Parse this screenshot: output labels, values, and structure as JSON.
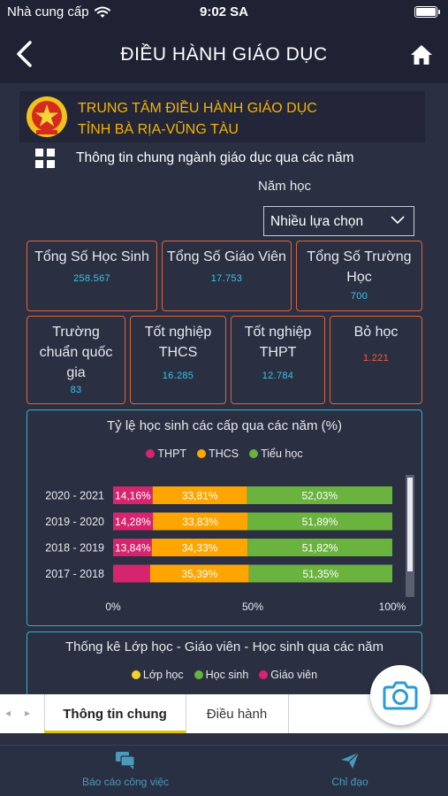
{
  "status_bar": {
    "carrier": "Nhà cung cấp",
    "time": "9:02 SA"
  },
  "nav": {
    "title": "ĐIỀU HÀNH GIÁO DỤC",
    "back_icon": "chevron-left-icon",
    "home_icon": "home-icon"
  },
  "org": {
    "line1": "TRUNG TÂM ĐIỀU HÀNH GIÁO DỤC",
    "line2": "TỈNH BÀ RỊA-VŨNG TÀU"
  },
  "section": {
    "title": "Thông tin chung ngành giáo dục qua các năm"
  },
  "filter": {
    "label": "Năm học",
    "selected": "Nhiều lựa chọn"
  },
  "cards": [
    {
      "title": "Tổng Số Học Sinh",
      "value": "258.567"
    },
    {
      "title": "Tổng Số Giáo Viên",
      "value": "17.753"
    },
    {
      "title": "Tổng Số Trường Học",
      "value": "700"
    },
    {
      "title": "Trường chuẩn quốc gia",
      "value": "83"
    },
    {
      "title": "Tốt nghiệp THCS",
      "value": "16.285"
    },
    {
      "title": "Tốt nghiệp THPT",
      "value": "12.784"
    },
    {
      "title": "Bỏ học",
      "value": "1.221"
    }
  ],
  "chart_data": [
    {
      "type": "bar",
      "orientation": "horizontal",
      "stacked": true,
      "title": "Tỷ lệ học sinh các cấp qua các năm (%)",
      "categories": [
        "2020 - 2021",
        "2019 - 2020",
        "2018 - 2019",
        "2017 - 2018"
      ],
      "series": [
        {
          "name": "THPT",
          "color": "#d6246e",
          "values": [
            14.16,
            14.28,
            13.84,
            13.26
          ],
          "labels": [
            "14,16%",
            "14,28%",
            "13,84%",
            ""
          ]
        },
        {
          "name": "THCS",
          "color": "#ffa500",
          "values": [
            33.81,
            33.83,
            34.33,
            35.39
          ],
          "labels": [
            "33,81%",
            "33,83%",
            "34,33%",
            "35,39%"
          ]
        },
        {
          "name": "Tiểu học",
          "color": "#6ab33e",
          "values": [
            52.03,
            51.89,
            51.82,
            51.35
          ],
          "labels": [
            "52,03%",
            "51,89%",
            "51,82%",
            "51,35%"
          ]
        }
      ],
      "x_ticks": [
        "0%",
        "50%",
        "100%"
      ],
      "xlim": [
        0,
        100
      ],
      "legend": "top"
    },
    {
      "type": "bar",
      "title": "Thống kê Lớp học - Giáo viên - Học sinh qua các năm",
      "series": [
        {
          "name": "Lớp học",
          "color": "#f5d02a"
        },
        {
          "name": "Học sinh",
          "color": "#6ab33e"
        },
        {
          "name": "Giáo viên",
          "color": "#d6246e"
        }
      ],
      "legend": "top"
    }
  ],
  "tabs": [
    {
      "label": "Thông tin chung",
      "active": true
    },
    {
      "label": "Điều hành",
      "active": false
    }
  ],
  "bottom_nav": [
    {
      "label": "Báo cáo công việc",
      "icon": "chat-icon"
    },
    {
      "label": "Chỉ đạo",
      "icon": "send-icon"
    }
  ],
  "colors": {
    "accent": "#f5b400",
    "card_border": "#e0623a",
    "chart_border": "#2bb3c8",
    "value": "#34c6e8"
  }
}
